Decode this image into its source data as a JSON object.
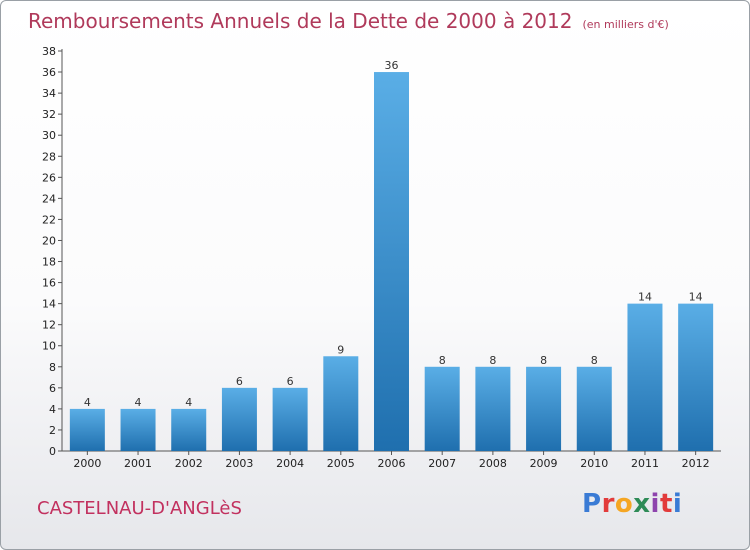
{
  "title": "Remboursements Annuels de la Dette de 2000 à 2012",
  "unit_note": "(en milliers d'€)",
  "commune": "CASTELNAU-D'ANGLèS",
  "logo": {
    "letters": [
      "P",
      "r",
      "o",
      "x",
      "i",
      "t",
      "i"
    ],
    "colors": [
      "#3a7bd5",
      "#e23b3b",
      "#f5a623",
      "#2e8b57",
      "#8e44ad",
      "#e23b3b",
      "#3a7bd5"
    ]
  },
  "colors": {
    "bar_light": "#5aaee6",
    "bar_dark": "#1f6fae",
    "title": "#b03a5b"
  },
  "chart_data": {
    "type": "bar",
    "categories": [
      "2000",
      "2001",
      "2002",
      "2003",
      "2004",
      "2005",
      "2006",
      "2007",
      "2008",
      "2009",
      "2010",
      "2011",
      "2012"
    ],
    "values": [
      4,
      4,
      4,
      6,
      6,
      9,
      36,
      8,
      8,
      8,
      8,
      14,
      14
    ],
    "ylim": [
      0,
      38
    ],
    "yticks": [
      0,
      2,
      4,
      6,
      8,
      10,
      12,
      14,
      16,
      18,
      20,
      22,
      24,
      26,
      28,
      30,
      32,
      34,
      36,
      38
    ],
    "grid": false
  }
}
